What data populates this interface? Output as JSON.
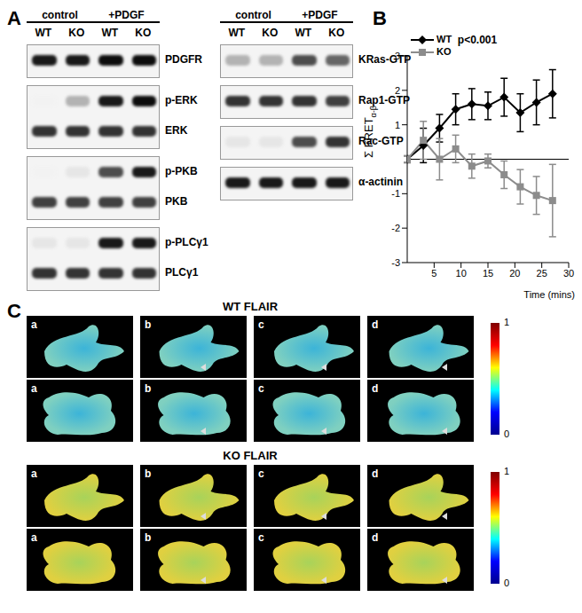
{
  "panel_labels": [
    "A",
    "B",
    "C"
  ],
  "western_blot": {
    "groups": [
      "control",
      "+PDGF"
    ],
    "lanes": [
      "WT",
      "KO",
      "WT",
      "KO"
    ],
    "left": [
      [
        {
          "label": "PDGFR",
          "intensity": [
            0.9,
            0.9,
            0.95,
            0.95
          ]
        }
      ],
      [
        {
          "label": "p-ERK",
          "intensity": [
            0.05,
            0.3,
            0.9,
            0.95
          ]
        },
        {
          "label": "ERK",
          "intensity": [
            0.8,
            0.8,
            0.8,
            0.8
          ]
        }
      ],
      [
        {
          "label": "p-PKB",
          "intensity": [
            0.05,
            0.1,
            0.7,
            0.9
          ]
        },
        {
          "label": "PKB",
          "intensity": [
            0.75,
            0.75,
            0.75,
            0.75
          ]
        }
      ],
      [
        {
          "label": "p-PLCγ1",
          "intensity": [
            0.1,
            0.1,
            0.9,
            0.9
          ]
        },
        {
          "label": "PLCγ1",
          "intensity": [
            0.8,
            0.8,
            0.8,
            0.8
          ]
        }
      ]
    ],
    "right": [
      [
        {
          "label": "KRas-GTP",
          "intensity": [
            0.3,
            0.3,
            0.7,
            0.6
          ]
        }
      ],
      [
        {
          "label": "Rap1-GTP",
          "intensity": [
            0.8,
            0.8,
            0.8,
            0.75
          ]
        }
      ],
      [
        {
          "label": "Rac-GTP",
          "intensity": [
            0.1,
            0.1,
            0.7,
            0.8
          ]
        }
      ],
      [
        {
          "label": "α-actinin",
          "intensity": [
            0.9,
            0.9,
            0.9,
            0.9
          ]
        }
      ]
    ]
  },
  "chart_data": {
    "type": "line",
    "title": "p<0.001",
    "x_label": "Time (mins)",
    "y_label": "Σ FRET α-β",
    "x": [
      0,
      3,
      6,
      9,
      12,
      15,
      18,
      21,
      24,
      27
    ],
    "xlim": [
      0,
      30
    ],
    "xticks": [
      5,
      10,
      15,
      20,
      25,
      30
    ],
    "ylim": [
      -3,
      3
    ],
    "yticks": [
      3,
      2,
      1,
      -1,
      -2,
      -3
    ],
    "legend": "upper left",
    "series": [
      {
        "name": "WT",
        "color": "#000000",
        "marker": "diamond",
        "values": [
          0,
          0.4,
          0.9,
          1.45,
          1.6,
          1.55,
          1.8,
          1.35,
          1.65,
          1.9
        ],
        "error": [
          0.1,
          0.5,
          0.4,
          0.45,
          0.45,
          0.4,
          0.55,
          0.55,
          0.65,
          0.7
        ]
      },
      {
        "name": "KO",
        "color": "#8c8c8c",
        "marker": "square",
        "values": [
          0,
          0.55,
          0,
          0.3,
          -0.2,
          -0.05,
          -0.45,
          -0.8,
          -1.05,
          -1.2
        ],
        "error": [
          0.1,
          0.55,
          0.6,
          0.4,
          0.35,
          0.2,
          0.4,
          0.5,
          0.55,
          1.05
        ]
      }
    ]
  },
  "flair_images": {
    "groups": [
      {
        "title": "WT FLAIR",
        "rows": [
          [
            "a",
            "b",
            "c",
            "d"
          ],
          [
            "a",
            "b",
            "c",
            "d"
          ]
        ]
      },
      {
        "title": "KO FLAIR",
        "rows": [
          [
            "a",
            "b",
            "c",
            "d"
          ],
          [
            "a",
            "b",
            "c",
            "d"
          ]
        ]
      }
    ],
    "colorbar": {
      "range": [
        0,
        1
      ],
      "ticks": [
        1,
        0
      ]
    }
  }
}
